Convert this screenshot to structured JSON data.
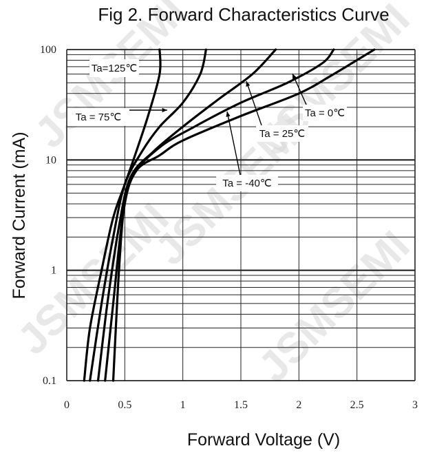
{
  "chart_data": {
    "type": "line",
    "title": "Fig 2. Forward Characteristics Curve",
    "xlabel": "Forward Voltage (V)",
    "ylabel": "Forward Current (mA)",
    "xlim": [
      0,
      3
    ],
    "ylim": [
      0.1,
      100
    ],
    "yscale": "log",
    "grid": true,
    "x_ticks": [
      "0",
      "0.5",
      "1",
      "1.5",
      "2",
      "2.5",
      "3"
    ],
    "y_ticks": [
      "0.1",
      "1",
      "10",
      "100"
    ],
    "watermark": "JSMSEMI",
    "series": [
      {
        "name": "Ta=125℃",
        "points": [
          [
            0.15,
            0.1
          ],
          [
            0.2,
            0.3
          ],
          [
            0.3,
            1.0
          ],
          [
            0.4,
            3.0
          ],
          [
            0.5,
            6.0
          ],
          [
            0.6,
            12
          ],
          [
            0.7,
            25
          ],
          [
            0.8,
            60
          ],
          [
            0.8,
            100
          ]
        ]
      },
      {
        "name": "Ta = 75℃",
        "points": [
          [
            0.2,
            0.1
          ],
          [
            0.3,
            0.5
          ],
          [
            0.4,
            2.0
          ],
          [
            0.5,
            6.0
          ],
          [
            0.65,
            12
          ],
          [
            0.8,
            20
          ],
          [
            1.0,
            33
          ],
          [
            1.15,
            60
          ],
          [
            1.2,
            100
          ]
        ]
      },
      {
        "name": "Ta = 25℃",
        "points": [
          [
            0.27,
            0.1
          ],
          [
            0.35,
            0.5
          ],
          [
            0.45,
            2.5
          ],
          [
            0.55,
            7.0
          ],
          [
            0.75,
            12
          ],
          [
            1.0,
            20
          ],
          [
            1.3,
            35
          ],
          [
            1.6,
            60
          ],
          [
            1.8,
            100
          ]
        ]
      },
      {
        "name": "Ta = 0℃",
        "points": [
          [
            0.33,
            0.1
          ],
          [
            0.4,
            0.5
          ],
          [
            0.48,
            3.0
          ],
          [
            0.56,
            7.0
          ],
          [
            0.8,
            13
          ],
          [
            1.1,
            20
          ],
          [
            1.5,
            33
          ],
          [
            1.9,
            50
          ],
          [
            2.2,
            75
          ],
          [
            2.3,
            100
          ]
        ]
      },
      {
        "name": "Ta = -40℃",
        "points": [
          [
            0.4,
            0.1
          ],
          [
            0.45,
            1.0
          ],
          [
            0.5,
            4.0
          ],
          [
            0.6,
            8.0
          ],
          [
            0.8,
            11
          ],
          [
            1.0,
            15
          ],
          [
            1.5,
            25
          ],
          [
            2.0,
            40
          ],
          [
            2.3,
            60
          ],
          [
            2.65,
            100
          ]
        ]
      }
    ],
    "annotations": [
      {
        "text": "Ta=125℃",
        "series": 0
      },
      {
        "text": "Ta = 75℃",
        "series": 1
      },
      {
        "text": "Ta = 25℃",
        "series": 2
      },
      {
        "text": "Ta = 0℃",
        "series": 3
      },
      {
        "text": "Ta = -40℃",
        "series": 4
      }
    ]
  }
}
